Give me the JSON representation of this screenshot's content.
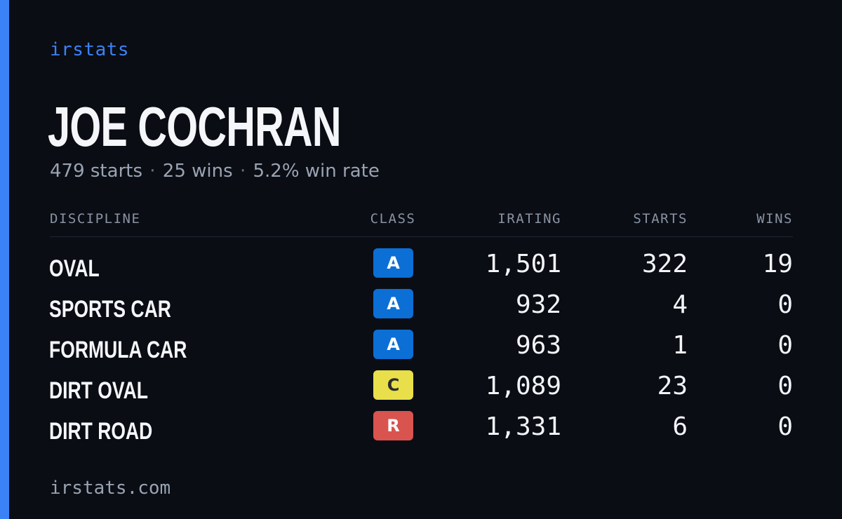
{
  "brand": "irstats",
  "driver": {
    "name": "JOE COCHRAN",
    "summary_starts": "479 starts",
    "summary_wins": "25 wins",
    "summary_winrate": "5.2% win rate",
    "separator": "·"
  },
  "table": {
    "headers": {
      "discipline": "DISCIPLINE",
      "class": "CLASS",
      "irating": "IRATING",
      "starts": "STARTS",
      "wins": "WINS"
    },
    "rows": [
      {
        "discipline": "OVAL",
        "class": "A",
        "irating": "1,501",
        "starts": "322",
        "wins": "19"
      },
      {
        "discipline": "SPORTS CAR",
        "class": "A",
        "irating": "932",
        "starts": "4",
        "wins": "0"
      },
      {
        "discipline": "FORMULA CAR",
        "class": "A",
        "irating": "963",
        "starts": "1",
        "wins": "0"
      },
      {
        "discipline": "DIRT OVAL",
        "class": "C",
        "irating": "1,089",
        "starts": "23",
        "wins": "0"
      },
      {
        "discipline": "DIRT ROAD",
        "class": "R",
        "irating": "1,331",
        "starts": "6",
        "wins": "0"
      }
    ]
  },
  "class_colors": {
    "A": {
      "bg": "#0b6fd6",
      "fg": "#ffffff"
    },
    "C": {
      "bg": "#e8df4a",
      "fg": "#2a2a2a"
    },
    "R": {
      "bg": "#d9534f",
      "fg": "#ffffff"
    }
  },
  "colors": {
    "accent": "#3b82f6",
    "background": "#0a0d14"
  },
  "footer": {
    "url": "irstats.com"
  }
}
